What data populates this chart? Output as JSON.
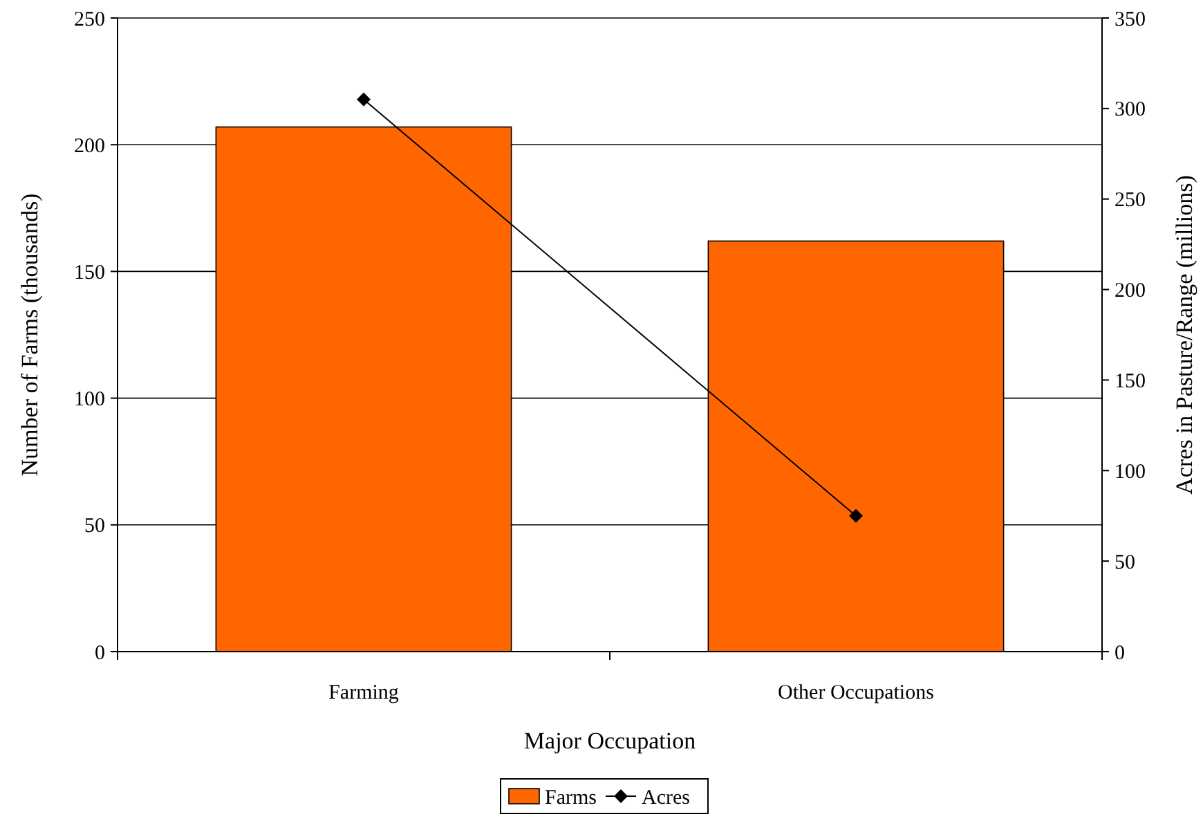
{
  "chart_data": {
    "type": "bar",
    "xlabel": "Major Occupation",
    "ylabel": "Number of Farms (thousands)",
    "y2label": "Acres in Pasture/Range (millions)",
    "categories": [
      "Farming",
      "Other Occupations"
    ],
    "series": [
      {
        "name": "Farms",
        "color": "#ff6600",
        "values": [
          207,
          162
        ]
      },
      {
        "name": "Acres",
        "type": "line",
        "axis": "y2",
        "color": "#000000",
        "values": [
          305,
          75
        ],
        "marker": "diamond"
      }
    ],
    "ylim": [
      0,
      250
    ],
    "yticks": [
      0,
      50,
      100,
      150,
      200,
      250
    ],
    "y2lim": [
      0,
      350
    ],
    "y2ticks": [
      0,
      50,
      100,
      150,
      200,
      250,
      300,
      350
    ],
    "grid": "y",
    "legend": "bottom"
  }
}
